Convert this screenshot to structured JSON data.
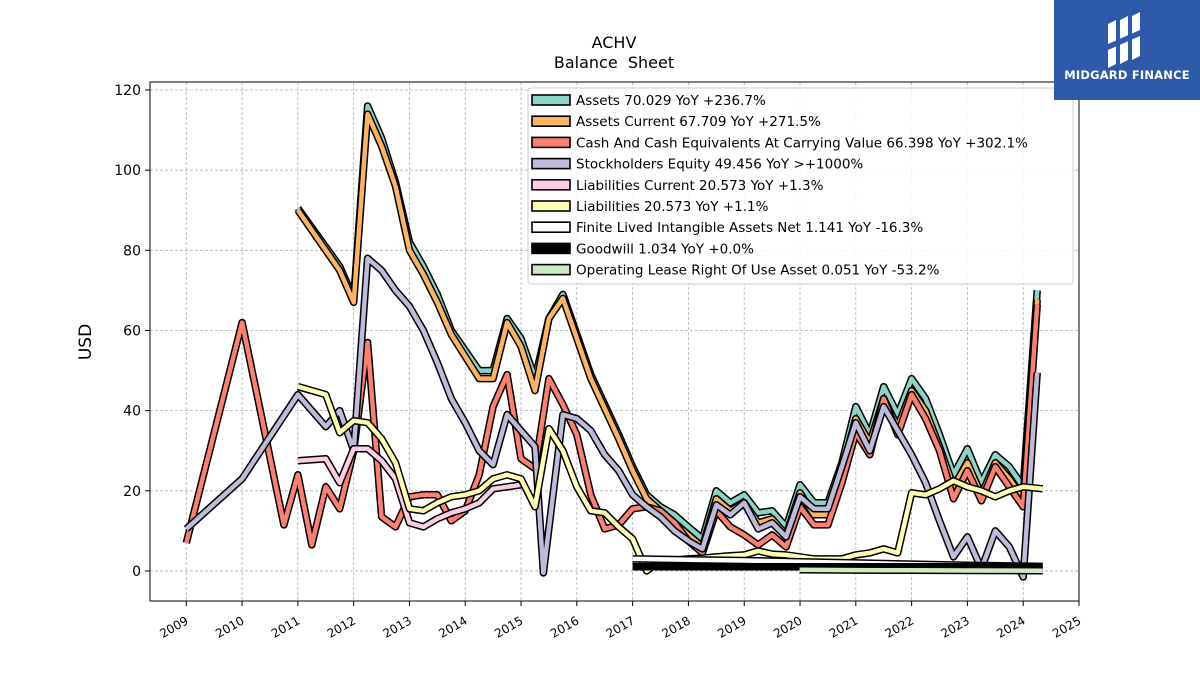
{
  "logo": {
    "text": "MIDGARD FINANCE",
    "icon": "midgard-logo-icon"
  },
  "chart_data": {
    "type": "line",
    "title": "ACHV",
    "subtitle": "Balance  Sheet",
    "ylabel": "USD",
    "xlabel": "",
    "xlim": [
      2008.35,
      2025.0
    ],
    "ylim": [
      -7.5,
      122
    ],
    "yticks": [
      0,
      20,
      40,
      60,
      80,
      100,
      120
    ],
    "xticks": [
      "2009",
      "2010",
      "2011",
      "2012",
      "2013",
      "2014",
      "2015",
      "2016",
      "2017",
      "2018",
      "2019",
      "2020",
      "2021",
      "2022",
      "2023",
      "2024",
      "2025"
    ],
    "grid": true,
    "legend_position": "top-right",
    "series": [
      {
        "name": "Assets  70.029 YoY +236.7%",
        "color": "#8dd3c7",
        "points": [
          [
            2011.0,
            90.5
          ],
          [
            2011.75,
            76
          ],
          [
            2012.0,
            68
          ],
          [
            2012.25,
            116
          ],
          [
            2012.5,
            108
          ],
          [
            2012.75,
            97
          ],
          [
            2013.0,
            82
          ],
          [
            2013.25,
            76
          ],
          [
            2013.5,
            69
          ],
          [
            2013.75,
            60
          ],
          [
            2014.25,
            50
          ],
          [
            2014.5,
            50
          ],
          [
            2014.75,
            63
          ],
          [
            2015.0,
            58
          ],
          [
            2015.25,
            48
          ],
          [
            2015.5,
            63
          ],
          [
            2015.75,
            69
          ],
          [
            2016.25,
            49
          ],
          [
            2016.75,
            34
          ],
          [
            2017.0,
            26
          ],
          [
            2017.25,
            19
          ],
          [
            2017.5,
            16
          ],
          [
            2017.75,
            14
          ],
          [
            2018.0,
            11
          ],
          [
            2018.25,
            8
          ],
          [
            2018.5,
            20
          ],
          [
            2018.75,
            17
          ],
          [
            2019.0,
            19
          ],
          [
            2019.25,
            14.5
          ],
          [
            2019.5,
            15
          ],
          [
            2019.75,
            11
          ],
          [
            2020.0,
            21.5
          ],
          [
            2020.25,
            17
          ],
          [
            2020.5,
            17
          ],
          [
            2020.75,
            27
          ],
          [
            2021.0,
            41
          ],
          [
            2021.25,
            34
          ],
          [
            2021.5,
            46
          ],
          [
            2021.75,
            39
          ],
          [
            2022.0,
            48
          ],
          [
            2022.25,
            43
          ],
          [
            2022.5,
            34
          ],
          [
            2022.75,
            24
          ],
          [
            2023.0,
            30.5
          ],
          [
            2023.25,
            22
          ],
          [
            2023.5,
            29
          ],
          [
            2023.75,
            26
          ],
          [
            2024.0,
            21
          ],
          [
            2024.25,
            70
          ]
        ]
      },
      {
        "name": "Assets Current  67.709 YoY +271.5%",
        "color": "#fdb462",
        "points": [
          [
            2011.0,
            90
          ],
          [
            2011.75,
            75
          ],
          [
            2012.0,
            67
          ],
          [
            2012.25,
            114
          ],
          [
            2012.5,
            106
          ],
          [
            2012.75,
            96
          ],
          [
            2013.0,
            80
          ],
          [
            2013.25,
            74
          ],
          [
            2013.5,
            67
          ],
          [
            2013.75,
            59
          ],
          [
            2014.25,
            48
          ],
          [
            2014.5,
            48
          ],
          [
            2014.75,
            62
          ],
          [
            2015.0,
            56
          ],
          [
            2015.25,
            45
          ],
          [
            2015.5,
            63
          ],
          [
            2015.75,
            68
          ],
          [
            2016.25,
            48
          ],
          [
            2016.75,
            33
          ],
          [
            2017.0,
            25
          ],
          [
            2017.25,
            18
          ],
          [
            2017.5,
            15
          ],
          [
            2017.75,
            12
          ],
          [
            2018.0,
            9
          ],
          [
            2018.25,
            6
          ],
          [
            2018.5,
            18
          ],
          [
            2018.75,
            15
          ],
          [
            2019.0,
            17
          ],
          [
            2019.25,
            12
          ],
          [
            2019.5,
            13
          ],
          [
            2019.75,
            9
          ],
          [
            2020.0,
            19.5
          ],
          [
            2020.25,
            14
          ],
          [
            2020.5,
            14
          ],
          [
            2020.75,
            25
          ],
          [
            2021.0,
            38
          ],
          [
            2021.25,
            32
          ],
          [
            2021.5,
            43
          ],
          [
            2021.75,
            36
          ],
          [
            2022.0,
            45
          ],
          [
            2022.25,
            40
          ],
          [
            2022.5,
            31
          ],
          [
            2022.75,
            21
          ],
          [
            2023.0,
            27
          ],
          [
            2023.25,
            19
          ],
          [
            2023.5,
            27
          ],
          [
            2023.75,
            23
          ],
          [
            2024.0,
            18
          ],
          [
            2024.25,
            67.7
          ]
        ]
      },
      {
        "name": "Cash And Cash Equivalents At Carrying Value  66.398 YoY +302.1%",
        "color": "#fb8072",
        "points": [
          [
            2009.0,
            7
          ],
          [
            2010.0,
            62
          ],
          [
            2010.75,
            11.5
          ],
          [
            2011.0,
            24
          ],
          [
            2011.25,
            6.5
          ],
          [
            2011.5,
            21
          ],
          [
            2011.75,
            15.5
          ],
          [
            2012.0,
            30
          ],
          [
            2012.25,
            57
          ],
          [
            2012.5,
            13.5
          ],
          [
            2012.75,
            11
          ],
          [
            2013.0,
            18.5
          ],
          [
            2013.25,
            19
          ],
          [
            2013.5,
            19
          ],
          [
            2013.75,
            12.5
          ],
          [
            2014.0,
            15
          ],
          [
            2014.25,
            24
          ],
          [
            2014.5,
            41
          ],
          [
            2014.75,
            49
          ],
          [
            2015.0,
            28
          ],
          [
            2015.25,
            25.5
          ],
          [
            2015.5,
            48
          ],
          [
            2015.75,
            41.5
          ],
          [
            2016.0,
            34
          ],
          [
            2016.25,
            19
          ],
          [
            2016.5,
            10.5
          ],
          [
            2016.75,
            11.5
          ],
          [
            2017.0,
            15.5
          ],
          [
            2017.25,
            16
          ],
          [
            2017.5,
            15
          ],
          [
            2017.75,
            12
          ],
          [
            2018.0,
            7.5
          ],
          [
            2018.25,
            4.5
          ],
          [
            2018.5,
            15
          ],
          [
            2018.75,
            11
          ],
          [
            2019.0,
            9
          ],
          [
            2019.25,
            6.5
          ],
          [
            2019.5,
            9
          ],
          [
            2019.75,
            6
          ],
          [
            2020.0,
            16
          ],
          [
            2020.25,
            11.5
          ],
          [
            2020.5,
            11.5
          ],
          [
            2020.75,
            22
          ],
          [
            2021.0,
            34.5
          ],
          [
            2021.25,
            29
          ],
          [
            2021.5,
            43
          ],
          [
            2021.75,
            34
          ],
          [
            2022.0,
            44
          ],
          [
            2022.25,
            38
          ],
          [
            2022.5,
            30
          ],
          [
            2022.75,
            18
          ],
          [
            2023.0,
            25
          ],
          [
            2023.25,
            17.5
          ],
          [
            2023.5,
            26
          ],
          [
            2023.75,
            21
          ],
          [
            2024.0,
            16
          ],
          [
            2024.25,
            66.4
          ]
        ]
      },
      {
        "name": "Stockholders Equity  49.456 YoY >+1000%",
        "color": "#bebada",
        "points": [
          [
            2009.0,
            10.5
          ],
          [
            2010.0,
            23
          ],
          [
            2011.0,
            44
          ],
          [
            2011.5,
            36
          ],
          [
            2011.75,
            40
          ],
          [
            2012.0,
            30
          ],
          [
            2012.25,
            78
          ],
          [
            2012.5,
            75
          ],
          [
            2012.75,
            70
          ],
          [
            2013.0,
            66
          ],
          [
            2013.25,
            60
          ],
          [
            2013.5,
            52
          ],
          [
            2013.75,
            43
          ],
          [
            2014.0,
            37
          ],
          [
            2014.25,
            30
          ],
          [
            2014.5,
            26.5
          ],
          [
            2014.75,
            39
          ],
          [
            2015.0,
            35
          ],
          [
            2015.25,
            31
          ],
          [
            2015.4,
            -0.5
          ],
          [
            2015.75,
            39
          ],
          [
            2016.0,
            38
          ],
          [
            2016.25,
            35
          ],
          [
            2016.5,
            29
          ],
          [
            2016.75,
            25
          ],
          [
            2017.0,
            19
          ],
          [
            2017.25,
            16
          ],
          [
            2017.5,
            13.5
          ],
          [
            2017.75,
            10
          ],
          [
            2018.0,
            7.5
          ],
          [
            2018.25,
            5.5
          ],
          [
            2018.5,
            16.5
          ],
          [
            2018.75,
            14
          ],
          [
            2019.0,
            17
          ],
          [
            2019.25,
            10.5
          ],
          [
            2019.5,
            12
          ],
          [
            2019.75,
            8.5
          ],
          [
            2020.0,
            18.5
          ],
          [
            2020.25,
            15.5
          ],
          [
            2020.5,
            15.5
          ],
          [
            2020.75,
            26
          ],
          [
            2021.0,
            37
          ],
          [
            2021.25,
            30
          ],
          [
            2021.5,
            41
          ],
          [
            2021.75,
            35
          ],
          [
            2022.0,
            29
          ],
          [
            2022.25,
            22
          ],
          [
            2022.5,
            12.5
          ],
          [
            2022.75,
            3.5
          ],
          [
            2023.0,
            8.5
          ],
          [
            2023.25,
            0.5
          ],
          [
            2023.5,
            10
          ],
          [
            2023.75,
            6
          ],
          [
            2024.0,
            -1.5
          ],
          [
            2024.25,
            49.5
          ]
        ]
      },
      {
        "name": "Liabilities Current  20.573 YoY +1.3%",
        "color": "#fccde5",
        "points": [
          [
            2011.0,
            27.5
          ],
          [
            2011.5,
            28
          ],
          [
            2011.75,
            22
          ],
          [
            2012.0,
            30.5
          ],
          [
            2012.25,
            30.5
          ],
          [
            2012.5,
            27.5
          ],
          [
            2012.75,
            23
          ],
          [
            2013.0,
            12
          ],
          [
            2013.25,
            11
          ],
          [
            2013.5,
            13
          ],
          [
            2013.75,
            14.5
          ],
          [
            2014.0,
            15.5
          ],
          [
            2014.25,
            17
          ],
          [
            2014.5,
            20.5
          ],
          [
            2014.75,
            21
          ],
          [
            2015.0,
            21.5
          ]
        ]
      },
      {
        "name": "Liabilities  20.573 YoY +1.1%",
        "color": "#ffffb3",
        "points": [
          [
            2011.0,
            46
          ],
          [
            2011.5,
            44
          ],
          [
            2011.75,
            34.5
          ],
          [
            2012.0,
            37.5
          ],
          [
            2012.25,
            37
          ],
          [
            2012.5,
            33
          ],
          [
            2012.75,
            27
          ],
          [
            2013.0,
            15.5
          ],
          [
            2013.25,
            15
          ],
          [
            2013.5,
            17
          ],
          [
            2013.75,
            18.5
          ],
          [
            2014.0,
            19
          ],
          [
            2014.25,
            20
          ],
          [
            2014.5,
            23
          ],
          [
            2014.75,
            24
          ],
          [
            2015.0,
            23
          ],
          [
            2015.25,
            16
          ],
          [
            2015.5,
            35.5
          ],
          [
            2015.75,
            30
          ],
          [
            2016.0,
            21
          ],
          [
            2016.25,
            15
          ],
          [
            2016.5,
            14.5
          ],
          [
            2016.75,
            11
          ],
          [
            2017.0,
            8
          ],
          [
            2017.25,
            0
          ],
          [
            2017.5,
            2.5
          ],
          [
            2017.75,
            2.7
          ],
          [
            2018.0,
            3
          ],
          [
            2018.25,
            3.2
          ],
          [
            2018.5,
            3.5
          ],
          [
            2018.75,
            3.8
          ],
          [
            2019.0,
            4
          ],
          [
            2019.25,
            5
          ],
          [
            2019.5,
            4.2
          ],
          [
            2019.75,
            4
          ],
          [
            2020.0,
            3.5
          ],
          [
            2020.25,
            3
          ],
          [
            2020.5,
            3
          ],
          [
            2020.75,
            3
          ],
          [
            2021.0,
            4
          ],
          [
            2021.25,
            4.5
          ],
          [
            2021.5,
            5.5
          ],
          [
            2021.75,
            4.5
          ],
          [
            2022.0,
            19.5
          ],
          [
            2022.25,
            19
          ],
          [
            2022.5,
            20.5
          ],
          [
            2022.75,
            22.5
          ],
          [
            2023.0,
            21
          ],
          [
            2023.25,
            20
          ],
          [
            2023.5,
            18.5
          ],
          [
            2023.75,
            20
          ],
          [
            2024.0,
            21
          ],
          [
            2024.35,
            20.5
          ]
        ]
      },
      {
        "name": "Finite Lived Intangible Assets Net  1.141 YoY -16.3%",
        "color": "#ffffff",
        "points": [
          [
            2017.0,
            3.0
          ],
          [
            2018.0,
            2.8
          ],
          [
            2019.0,
            2.6
          ],
          [
            2020.0,
            2.3
          ],
          [
            2021.0,
            2.0
          ],
          [
            2022.0,
            1.7
          ],
          [
            2023.0,
            1.4
          ],
          [
            2024.35,
            1.14
          ]
        ]
      },
      {
        "name": "Goodwill  1.034 YoY +0.0%",
        "color": "#000000",
        "points": [
          [
            2017.0,
            1.03
          ],
          [
            2024.35,
            1.03
          ]
        ]
      },
      {
        "name": "Operating Lease Right Of Use Asset  0.051 YoY -53.2%",
        "color": "#ccebc5",
        "points": [
          [
            2019.99,
            0.3
          ],
          [
            2021.0,
            0.2
          ],
          [
            2022.0,
            0.15
          ],
          [
            2023.0,
            0.1
          ],
          [
            2024.35,
            0.05
          ]
        ]
      }
    ]
  }
}
